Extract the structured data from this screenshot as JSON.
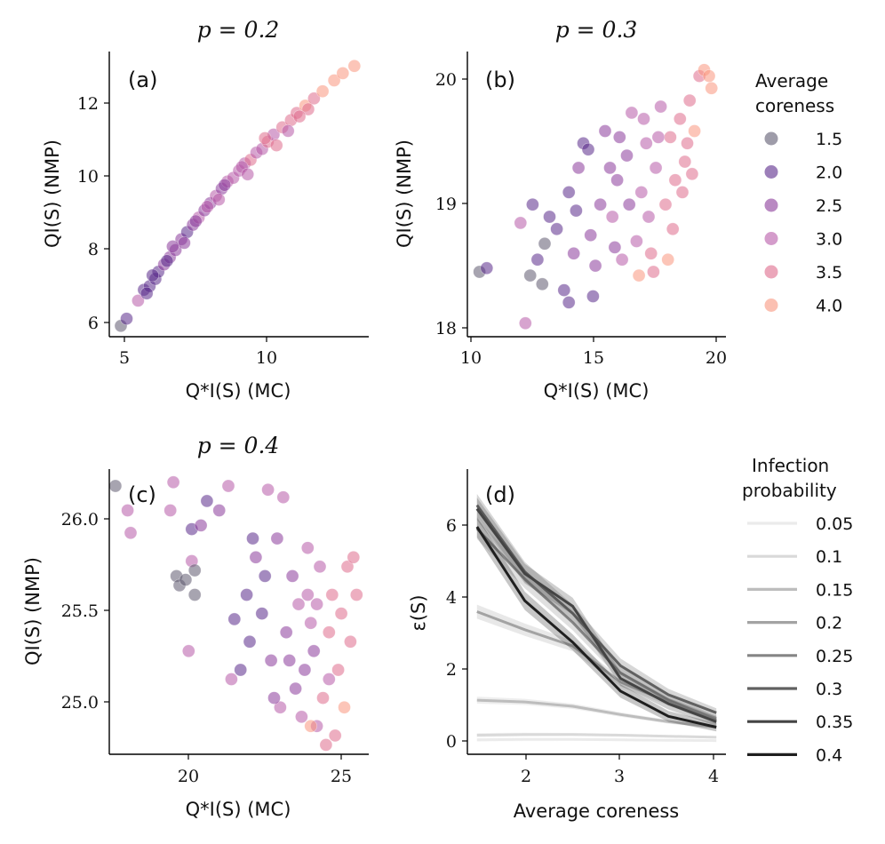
{
  "figure": {
    "panels": {
      "a": {
        "title": "p = 0.2",
        "letter": "(a)",
        "xlabel": "Q*I(S) (MC)",
        "ylabel": "QI(S) (NMP)",
        "xticks": [
          "5",
          "10"
        ],
        "yticks": [
          "6",
          "8",
          "10",
          "12"
        ]
      },
      "b": {
        "title": "p = 0.3",
        "letter": "(b)",
        "xlabel": "Q*I(S) (MC)",
        "ylabel": "QI(S) (NMP)",
        "xticks": [
          "10",
          "15",
          "20"
        ],
        "yticks": [
          "18",
          "19",
          "20"
        ]
      },
      "c": {
        "title": "p = 0.4",
        "letter": "(c)",
        "xlabel": "Q*I(S) (MC)",
        "ylabel": "QI(S) (NMP)",
        "xticks": [
          "20",
          "25"
        ],
        "yticks": [
          "25.0",
          "25.5",
          "26.0"
        ]
      },
      "d": {
        "title": "",
        "letter": "(d)",
        "xlabel": "Average coreness",
        "ylabel": "ε(S)",
        "xticks": [
          "2",
          "3",
          "4"
        ],
        "yticks": [
          "0",
          "2",
          "4",
          "6"
        ]
      }
    },
    "legend_coreness": {
      "title_line1": "Average",
      "title_line2": "coreness",
      "labels": [
        "1.5",
        "2.0",
        "2.5",
        "3.0",
        "3.5",
        "4.0"
      ],
      "colors": [
        "#5e5a70",
        "#5a2a8a",
        "#8a3a9a",
        "#b75aa8",
        "#de6b8c",
        "#f9967e"
      ]
    },
    "legend_infection": {
      "title_line1": "Infection",
      "title_line2": "probability",
      "labels": [
        "0.05",
        "0.1",
        "0.15",
        "0.2",
        "0.25",
        "0.3",
        "0.35",
        "0.4"
      ],
      "colors": [
        "#ebebeb",
        "#d9d9d9",
        "#bdbdbd",
        "#a3a3a3",
        "#858585",
        "#616161",
        "#444444",
        "#1f1f1f"
      ]
    }
  },
  "chart_data": [
    {
      "type": "scatter",
      "id": "a",
      "title": "p = 0.2",
      "xlabel": "Q*I(S) (MC)",
      "ylabel": "QI(S) (NMP)",
      "xlim": [
        4.5,
        13.5
      ],
      "ylim": [
        5.6,
        13.5
      ],
      "points": [
        [
          4.9,
          5.9,
          1.5
        ],
        [
          5.1,
          6.1,
          2.0
        ],
        [
          5.5,
          6.6,
          3.0
        ],
        [
          5.7,
          6.9,
          2.0
        ],
        [
          5.9,
          7.0,
          2.0
        ],
        [
          6.1,
          7.2,
          2.0
        ],
        [
          6.2,
          7.4,
          2.0
        ],
        [
          6.4,
          7.6,
          2.5
        ],
        [
          6.6,
          7.8,
          2.5
        ],
        [
          6.8,
          8.0,
          2.5
        ],
        [
          7.0,
          8.3,
          2.5
        ],
        [
          7.2,
          8.5,
          2.0
        ],
        [
          7.4,
          8.7,
          2.5
        ],
        [
          7.6,
          8.9,
          3.0
        ],
        [
          7.8,
          9.1,
          2.5
        ],
        [
          8.0,
          9.3,
          2.5
        ],
        [
          8.2,
          9.5,
          3.0
        ],
        [
          8.4,
          9.7,
          2.5
        ],
        [
          8.6,
          9.9,
          3.0
        ],
        [
          8.8,
          10.0,
          3.0
        ],
        [
          9.0,
          10.2,
          3.0
        ],
        [
          9.2,
          10.4,
          3.0
        ],
        [
          9.4,
          10.5,
          3.5
        ],
        [
          9.6,
          10.7,
          3.0
        ],
        [
          9.8,
          10.8,
          3.0
        ],
        [
          10.0,
          11.0,
          3.5
        ],
        [
          10.2,
          11.2,
          3.0
        ],
        [
          10.5,
          11.4,
          3.5
        ],
        [
          10.8,
          11.6,
          3.5
        ],
        [
          11.0,
          11.8,
          3.5
        ],
        [
          11.3,
          12.0,
          4.0
        ],
        [
          11.6,
          12.2,
          3.5
        ],
        [
          11.9,
          12.4,
          4.0
        ],
        [
          12.3,
          12.7,
          4.0
        ],
        [
          12.6,
          12.9,
          4.0
        ],
        [
          13.0,
          13.1,
          4.0
        ],
        [
          6.0,
          7.3,
          2.0
        ],
        [
          6.5,
          7.7,
          2.0
        ],
        [
          7.1,
          8.2,
          2.5
        ],
        [
          7.9,
          9.2,
          3.0
        ],
        [
          8.5,
          9.8,
          2.5
        ],
        [
          9.1,
          10.3,
          3.0
        ],
        [
          9.9,
          11.1,
          3.5
        ],
        [
          10.7,
          11.3,
          3.0
        ],
        [
          11.4,
          11.9,
          3.5
        ],
        [
          5.8,
          6.8,
          2.0
        ],
        [
          6.7,
          8.1,
          2.5
        ],
        [
          7.5,
          8.8,
          2.5
        ],
        [
          8.3,
          9.4,
          3.0
        ],
        [
          9.3,
          10.1,
          3.0
        ],
        [
          10.3,
          10.9,
          3.5
        ],
        [
          11.1,
          11.7,
          3.5
        ]
      ]
    },
    {
      "type": "scatter",
      "id": "b",
      "title": "p = 0.3",
      "xlabel": "Q*I(S) (MC)",
      "ylabel": "QI(S) (NMP)",
      "xlim": [
        9.8,
        20.5
      ],
      "ylim": [
        17.92,
        20.25
      ],
      "points": [
        [
          10.3,
          18.45,
          1.5
        ],
        [
          10.6,
          18.48,
          2.0
        ],
        [
          12.0,
          18.85,
          3.0
        ],
        [
          12.2,
          18.03,
          3.0
        ],
        [
          12.4,
          18.42,
          1.5
        ],
        [
          12.7,
          18.55,
          2.0
        ],
        [
          12.9,
          18.35,
          1.5
        ],
        [
          13.0,
          18.68,
          1.5
        ],
        [
          12.5,
          19.0,
          2.0
        ],
        [
          13.2,
          18.9,
          2.0
        ],
        [
          13.8,
          18.3,
          2.0
        ],
        [
          14.0,
          18.2,
          2.0
        ],
        [
          14.2,
          18.6,
          2.5
        ],
        [
          14.0,
          19.1,
          2.0
        ],
        [
          14.4,
          19.3,
          2.5
        ],
        [
          14.6,
          19.5,
          2.0
        ],
        [
          14.9,
          18.75,
          2.5
        ],
        [
          15.1,
          18.5,
          2.5
        ],
        [
          15.3,
          19.0,
          2.5
        ],
        [
          15.5,
          19.6,
          2.5
        ],
        [
          15.8,
          18.9,
          3.0
        ],
        [
          16.0,
          19.2,
          2.5
        ],
        [
          16.2,
          18.55,
          3.0
        ],
        [
          16.4,
          19.4,
          2.5
        ],
        [
          16.6,
          19.75,
          3.0
        ],
        [
          16.8,
          18.7,
          3.0
        ],
        [
          17.0,
          19.1,
          3.0
        ],
        [
          17.2,
          19.5,
          3.0
        ],
        [
          17.4,
          18.6,
          3.5
        ],
        [
          17.5,
          18.45,
          3.5
        ],
        [
          17.6,
          19.3,
          3.0
        ],
        [
          17.8,
          19.8,
          3.0
        ],
        [
          18.0,
          19.0,
          3.5
        ],
        [
          18.1,
          18.55,
          4.0
        ],
        [
          18.2,
          19.55,
          3.5
        ],
        [
          18.4,
          19.2,
          3.5
        ],
        [
          18.6,
          19.7,
          3.5
        ],
        [
          18.8,
          19.35,
          3.5
        ],
        [
          19.0,
          19.85,
          3.5
        ],
        [
          19.2,
          19.6,
          4.0
        ],
        [
          19.4,
          20.05,
          3.5
        ],
        [
          19.6,
          20.1,
          4.0
        ],
        [
          19.8,
          20.05,
          4.0
        ],
        [
          19.9,
          19.95,
          4.0
        ],
        [
          16.9,
          18.42,
          4.0
        ],
        [
          13.5,
          18.8,
          2.0
        ],
        [
          14.8,
          19.45,
          2.0
        ],
        [
          15.7,
          19.3,
          2.5
        ],
        [
          16.5,
          19.0,
          2.5
        ],
        [
          17.3,
          18.9,
          3.0
        ],
        [
          18.3,
          18.8,
          3.5
        ],
        [
          19.1,
          19.25,
          3.5
        ],
        [
          15.0,
          18.25,
          2.0
        ],
        [
          16.1,
          19.55,
          2.5
        ],
        [
          17.7,
          19.55,
          3.0
        ],
        [
          18.7,
          19.1,
          3.5
        ],
        [
          14.3,
          18.95,
          2.0
        ],
        [
          15.9,
          18.65,
          2.5
        ],
        [
          17.1,
          19.7,
          3.0
        ],
        [
          18.9,
          19.5,
          3.5
        ]
      ]
    },
    {
      "type": "scatter",
      "id": "c",
      "title": "p = 0.4",
      "xlabel": "Q*I(S) (MC)",
      "ylabel": "QI(S) (NMP)",
      "xlim": [
        17.4,
        25.9
      ],
      "ylim": [
        24.75,
        26.27
      ],
      "points": [
        [
          17.6,
          26.18,
          1.5
        ],
        [
          18.0,
          26.05,
          3.0
        ],
        [
          18.1,
          25.93,
          3.0
        ],
        [
          19.4,
          26.05,
          3.0
        ],
        [
          19.5,
          26.2,
          3.0
        ],
        [
          19.6,
          25.7,
          1.5
        ],
        [
          19.7,
          25.65,
          1.5
        ],
        [
          19.9,
          25.68,
          1.5
        ],
        [
          20.0,
          25.3,
          3.0
        ],
        [
          20.1,
          25.95,
          2.0
        ],
        [
          20.1,
          25.78,
          3.0
        ],
        [
          20.2,
          25.6,
          1.5
        ],
        [
          20.2,
          25.73,
          1.5
        ],
        [
          20.4,
          25.97,
          2.5
        ],
        [
          20.6,
          26.1,
          2.0
        ],
        [
          21.0,
          26.05,
          2.5
        ],
        [
          21.3,
          26.18,
          3.0
        ],
        [
          21.4,
          25.15,
          3.0
        ],
        [
          21.5,
          25.47,
          2.0
        ],
        [
          21.7,
          25.2,
          2.0
        ],
        [
          21.9,
          25.6,
          2.0
        ],
        [
          22.0,
          25.35,
          2.0
        ],
        [
          22.2,
          25.8,
          2.5
        ],
        [
          22.4,
          25.5,
          2.0
        ],
        [
          22.6,
          26.16,
          3.0
        ],
        [
          22.7,
          25.25,
          2.5
        ],
        [
          22.9,
          25.9,
          2.5
        ],
        [
          23.0,
          25.0,
          3.0
        ],
        [
          23.1,
          26.12,
          3.0
        ],
        [
          23.2,
          25.4,
          2.5
        ],
        [
          23.4,
          25.7,
          2.5
        ],
        [
          23.5,
          25.1,
          2.5
        ],
        [
          23.6,
          25.55,
          3.0
        ],
        [
          23.7,
          24.95,
          3.0
        ],
        [
          23.8,
          25.2,
          2.5
        ],
        [
          23.9,
          25.6,
          3.0
        ],
        [
          24.0,
          25.45,
          3.0
        ],
        [
          24.1,
          25.3,
          2.5
        ],
        [
          24.2,
          24.9,
          3.0
        ],
        [
          24.3,
          25.75,
          3.0
        ],
        [
          24.4,
          25.05,
          3.5
        ],
        [
          24.5,
          24.8,
          3.5
        ],
        [
          24.6,
          25.4,
          3.5
        ],
        [
          24.7,
          25.6,
          3.5
        ],
        [
          24.8,
          24.85,
          3.5
        ],
        [
          24.9,
          25.2,
          3.5
        ],
        [
          25.0,
          25.5,
          3.5
        ],
        [
          25.1,
          25.0,
          4.0
        ],
        [
          25.2,
          25.75,
          3.5
        ],
        [
          25.3,
          25.35,
          3.5
        ],
        [
          25.4,
          25.8,
          3.5
        ],
        [
          25.5,
          25.6,
          3.5
        ],
        [
          24.0,
          24.9,
          4.0
        ],
        [
          22.1,
          25.9,
          2.0
        ],
        [
          22.5,
          25.7,
          2.0
        ],
        [
          23.3,
          25.25,
          2.5
        ],
        [
          24.2,
          25.55,
          3.0
        ],
        [
          24.6,
          25.15,
          3.0
        ],
        [
          22.8,
          25.05,
          2.5
        ],
        [
          23.9,
          25.85,
          3.0
        ]
      ]
    },
    {
      "type": "line",
      "id": "d",
      "xlabel": "Average coreness",
      "ylabel": "ε(S)",
      "xlim": [
        1.4,
        4.1
      ],
      "ylim": [
        -0.35,
        7.55
      ],
      "x": [
        1.5,
        2.0,
        2.5,
        3.0,
        3.5,
        4.0
      ],
      "series": [
        {
          "name": "0.05",
          "values": [
            0.05,
            0.06,
            0.06,
            0.05,
            0.04,
            0.03
          ]
        },
        {
          "name": "0.1",
          "values": [
            0.18,
            0.2,
            0.2,
            0.18,
            0.15,
            0.12
          ]
        },
        {
          "name": "0.15",
          "values": [
            1.15,
            1.1,
            0.98,
            0.75,
            0.55,
            0.4
          ]
        },
        {
          "name": "0.2",
          "values": [
            3.6,
            3.1,
            2.65,
            1.65,
            1.1,
            0.65
          ]
        },
        {
          "name": "0.25",
          "values": [
            5.9,
            4.5,
            3.3,
            1.9,
            1.15,
            0.6
          ]
        },
        {
          "name": "0.3",
          "values": [
            6.55,
            4.7,
            3.55,
            2.1,
            1.3,
            0.8
          ]
        },
        {
          "name": "0.35",
          "values": [
            6.45,
            4.65,
            3.75,
            1.75,
            1.05,
            0.55
          ]
        },
        {
          "name": "0.4",
          "values": [
            5.95,
            3.9,
            2.75,
            1.4,
            0.7,
            0.4
          ]
        }
      ]
    }
  ]
}
